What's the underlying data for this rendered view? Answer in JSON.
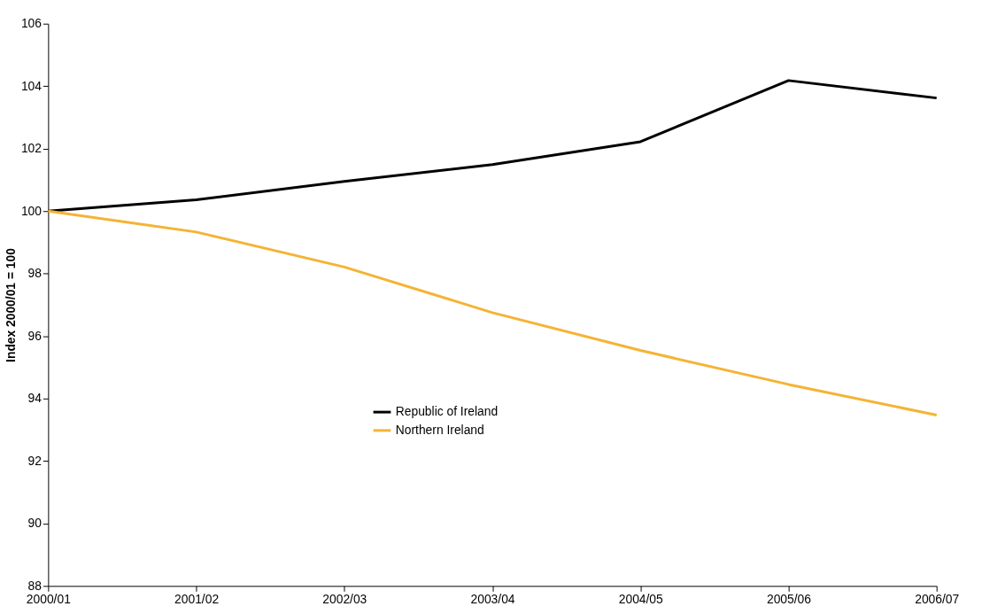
{
  "chart_data": {
    "type": "line",
    "ylabel": "Index   2000/01 = 100",
    "categories": [
      "2000/01",
      "2001/02",
      "2002/03",
      "2003/04",
      "2004/05",
      "2005/06",
      "2006/07"
    ],
    "series": [
      {
        "name": "Republic of Ireland",
        "color": "#000000",
        "values": [
          100,
          100.36,
          100.95,
          101.49,
          102.22,
          104.18,
          103.62
        ]
      },
      {
        "name": "Northern Ireland",
        "color": "#f5b335",
        "values": [
          100,
          99.33,
          98.21,
          96.75,
          95.54,
          94.45,
          93.47
        ]
      }
    ],
    "ylim": [
      88,
      106
    ],
    "yticks": [
      88,
      90,
      92,
      94,
      96,
      98,
      100,
      102,
      104,
      106
    ],
    "grid": false,
    "legend": "center",
    "marker": "none",
    "line_style": "solid"
  }
}
